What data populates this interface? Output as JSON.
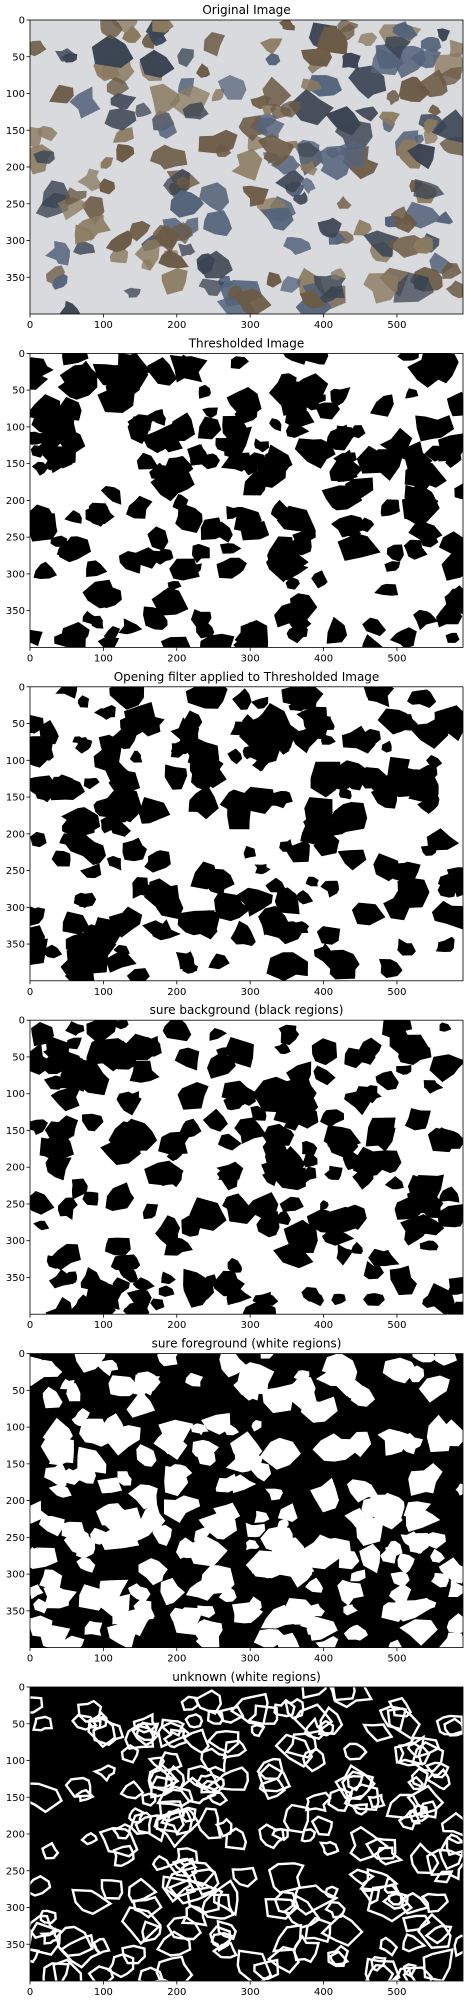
{
  "chart_data": [
    {
      "type": "image",
      "title": "Original Image",
      "render": "photo",
      "xticks": [
        0,
        100,
        200,
        300,
        400,
        500
      ],
      "yticks": [
        0,
        50,
        100,
        150,
        200,
        250,
        300,
        350
      ],
      "xlim": [
        0,
        590
      ],
      "ylim": [
        400,
        0
      ],
      "palette": [
        "#d9dade",
        "#3b4452",
        "#6b5a45",
        "#54637a",
        "#8a7a60"
      ]
    },
    {
      "type": "image",
      "title": "Thresholded Image",
      "render": "binary",
      "xticks": [
        0,
        100,
        200,
        300,
        400,
        500
      ],
      "yticks": [
        0,
        50,
        100,
        150,
        200,
        250,
        300,
        350
      ],
      "xlim": [
        0,
        590
      ],
      "ylim": [
        400,
        0
      ],
      "palette": [
        "#ffffff",
        "#000000"
      ]
    },
    {
      "type": "image",
      "title": "Opening filter applied to Thresholded Image",
      "render": "binary",
      "xticks": [
        0,
        100,
        200,
        300,
        400,
        500
      ],
      "yticks": [
        0,
        50,
        100,
        150,
        200,
        250,
        300,
        350
      ],
      "xlim": [
        0,
        590
      ],
      "ylim": [
        400,
        0
      ],
      "palette": [
        "#ffffff",
        "#000000"
      ]
    },
    {
      "type": "image",
      "title": "sure background (black regions)",
      "render": "binary",
      "xticks": [
        0,
        100,
        200,
        300,
        400,
        500
      ],
      "yticks": [
        0,
        50,
        100,
        150,
        200,
        250,
        300,
        350
      ],
      "xlim": [
        0,
        590
      ],
      "ylim": [
        400,
        0
      ],
      "palette": [
        "#ffffff",
        "#000000"
      ]
    },
    {
      "type": "image",
      "title": "sure foreground (white regions)",
      "render": "binary",
      "xticks": [
        0,
        100,
        200,
        300,
        400,
        500
      ],
      "yticks": [
        0,
        50,
        100,
        150,
        200,
        250,
        300,
        350
      ],
      "xlim": [
        0,
        590
      ],
      "ylim": [
        400,
        0
      ],
      "palette": [
        "#000000",
        "#ffffff"
      ]
    },
    {
      "type": "image",
      "title": "unknown (white regions)",
      "render": "outline",
      "xticks": [
        0,
        100,
        200,
        300,
        400,
        500
      ],
      "yticks": [
        0,
        50,
        100,
        150,
        200,
        250,
        300,
        350
      ],
      "xlim": [
        0,
        590
      ],
      "ylim": [
        400,
        0
      ],
      "palette": [
        "#000000",
        "#ffffff"
      ]
    }
  ]
}
